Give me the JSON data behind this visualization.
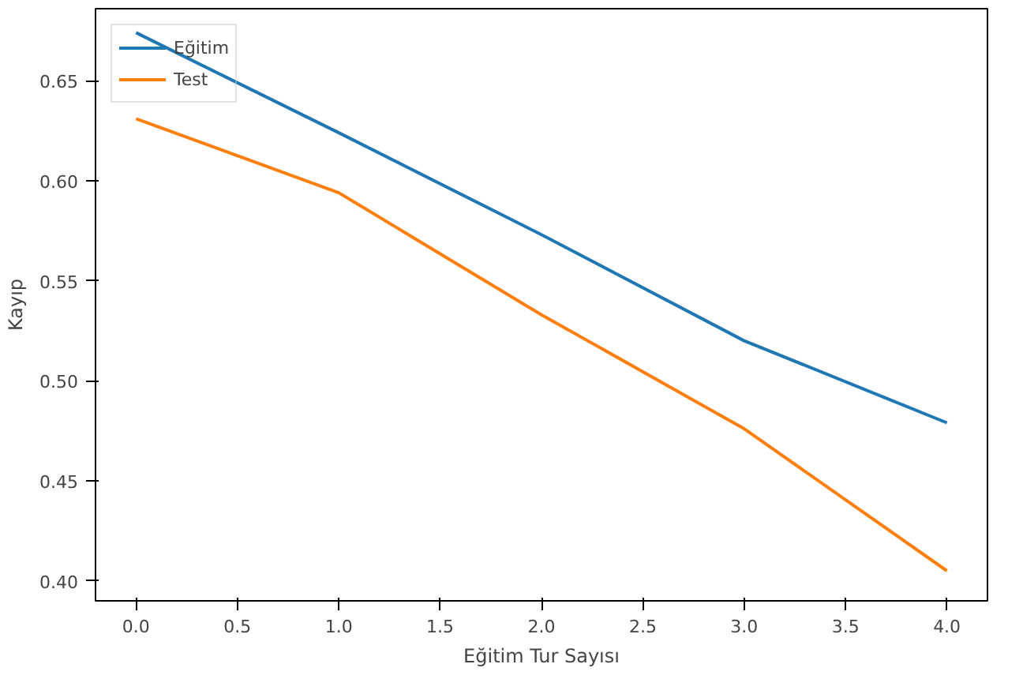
{
  "chart_data": {
    "type": "line",
    "xlabel": "Eğitim Tur Sayısı",
    "ylabel": "Kayıp",
    "x": [
      0,
      1,
      2,
      3,
      4
    ],
    "series": [
      {
        "name": "Eğitim",
        "color": "#1f77b4",
        "values": [
          0.674,
          0.624,
          0.573,
          0.52,
          0.479
        ]
      },
      {
        "name": "Test",
        "color": "#ff7f0e",
        "values": [
          0.631,
          0.594,
          0.533,
          0.476,
          0.405
        ]
      }
    ],
    "xlim": [
      -0.2,
      4.2
    ],
    "ylim": [
      0.39,
      0.686
    ],
    "xticks": [
      {
        "value": 0,
        "label": "0.0"
      },
      {
        "value": 0.5,
        "label": "0.5"
      },
      {
        "value": 1,
        "label": "1.0"
      },
      {
        "value": 1.5,
        "label": "1.5"
      },
      {
        "value": 2,
        "label": "2.0"
      },
      {
        "value": 2.5,
        "label": "2.5"
      },
      {
        "value": 3,
        "label": "3.0"
      },
      {
        "value": 3.5,
        "label": "3.5"
      },
      {
        "value": 4,
        "label": "4.0"
      }
    ],
    "yticks": [
      {
        "value": 0.4,
        "label": "0.40"
      },
      {
        "value": 0.45,
        "label": "0.45"
      },
      {
        "value": 0.5,
        "label": "0.50"
      },
      {
        "value": 0.55,
        "label": "0.55"
      },
      {
        "value": 0.6,
        "label": "0.60"
      },
      {
        "value": 0.65,
        "label": "0.65"
      }
    ],
    "grid": false,
    "legend": "top left",
    "marker": "none",
    "line_style": "solid"
  }
}
